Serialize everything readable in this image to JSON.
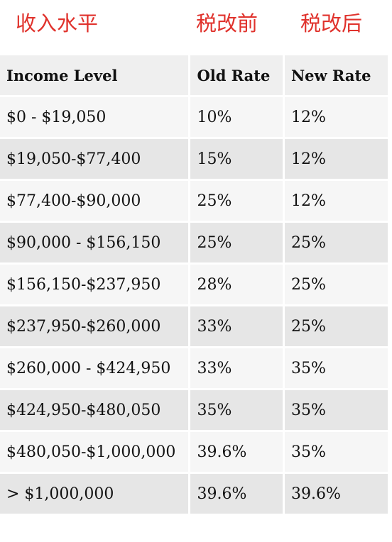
{
  "chinese_headers": {
    "income_level": "收入水平",
    "before_reform": "税改前",
    "after_reform": "税改后"
  },
  "table": {
    "columns": [
      "Income Level",
      "Old Rate",
      "New Rate"
    ],
    "rows": [
      {
        "income": " $0 - $19,050",
        "old": "10%",
        "new": "12%"
      },
      {
        "income": "$19,050-$77,400",
        "old": "15%",
        "new": "12%"
      },
      {
        "income": "$77,400-$90,000",
        "old": "25%",
        "new": "12%"
      },
      {
        "income": "$90,000 - $156,150",
        "old": "25%",
        "new": "25%"
      },
      {
        "income": "$156,150-$237,950",
        "old": "28%",
        "new": "25%"
      },
      {
        "income": "$237,950-$260,000",
        "old": "33%",
        "new": "25%"
      },
      {
        "income": "$260,000 - $424,950",
        "old": "33%",
        "new": "35%"
      },
      {
        "income": "$424,950-$480,050",
        "old": "35%",
        "new": "35%"
      },
      {
        "income": "$480,050-$1,000,000",
        "old": "39.6%",
        "new": "35%"
      },
      {
        "income": "> $1,000,000",
        "old": "39.6%",
        "new": "39.6%"
      }
    ]
  },
  "colors": {
    "chinese_header": "#e0322c",
    "cell_light": "#f6f6f6",
    "cell_dark": "#e6e6e6"
  }
}
